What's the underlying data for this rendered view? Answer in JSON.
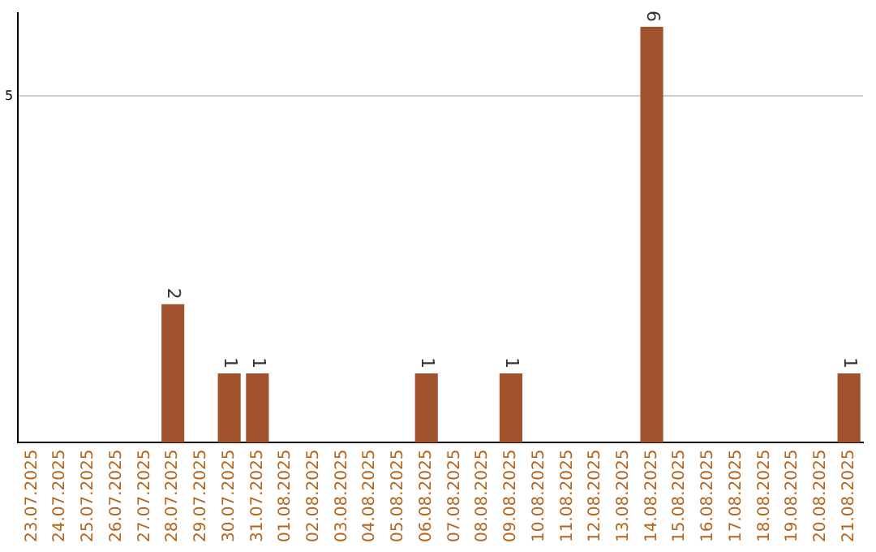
{
  "chart_data": {
    "type": "bar",
    "categories": [
      "23.07.2025",
      "24.07.2025",
      "25.07.2025",
      "26.07.2025",
      "27.07.2025",
      "28.07.2025",
      "29.07.2025",
      "30.07.2025",
      "31.07.2025",
      "01.08.2025",
      "02.08.2025",
      "03.08.2025",
      "04.08.2025",
      "05.08.2025",
      "06.08.2025",
      "07.08.2025",
      "08.08.2025",
      "09.08.2025",
      "10.08.2025",
      "11.08.2025",
      "12.08.2025",
      "13.08.2025",
      "14.08.2025",
      "15.08.2025",
      "16.08.2025",
      "17.08.2025",
      "18.08.2025",
      "19.08.2025",
      "20.08.2025",
      "21.08.2025"
    ],
    "values": [
      0,
      0,
      0,
      0,
      0,
      2,
      0,
      1,
      1,
      0,
      0,
      0,
      0,
      0,
      1,
      0,
      0,
      1,
      0,
      0,
      0,
      0,
      6,
      0,
      0,
      0,
      0,
      0,
      0,
      1
    ],
    "color": "#a0522d",
    "value_labels": [
      null,
      null,
      null,
      null,
      null,
      "2",
      null,
      "1",
      "1",
      null,
      null,
      null,
      null,
      null,
      "1",
      null,
      null,
      "1",
      null,
      null,
      null,
      null,
      "6",
      null,
      null,
      null,
      null,
      null,
      null,
      "1"
    ],
    "ylim": [
      0,
      6.2
    ],
    "yticks": [
      5
    ],
    "grid": "y",
    "legend": false
  }
}
